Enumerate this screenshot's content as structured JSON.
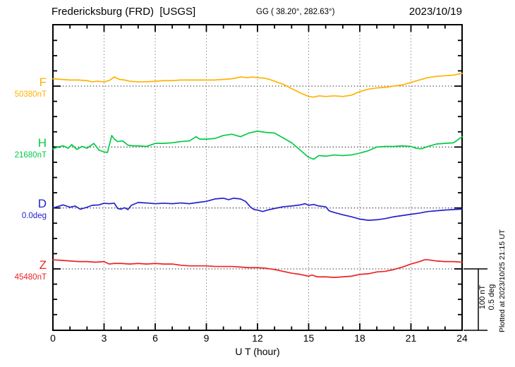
{
  "header": {
    "station_title": "Fredericksburg (FRD)  [USGS]",
    "geographic_coords": "GG ( 38.20°, 282.63°)",
    "date": "2023/10/19"
  },
  "side_note": "Plotted at 2023/10/25 21:15 UT",
  "scale_bar": {
    "nt_label": "100 nT",
    "deg_label": "0.5 deg"
  },
  "chart_data": {
    "type": "line",
    "title": "Fredericksburg (FRD) [USGS] magnetogram for 2023/10/19",
    "xlabel": "U T (hour)",
    "x_range": [
      0,
      24
    ],
    "x_major_ticks": [
      0,
      3,
      6,
      9,
      12,
      15,
      18,
      21,
      24
    ],
    "x_minor_step_hours": 1,
    "grid": "dotted vertical lines every 3 hours; dotted horizontal baseline per channel; one division of the stacked axis = 100 nT (0.5 deg for D)",
    "legend_position": "left margin channel labels",
    "channels": [
      {
        "name": "F",
        "baseline_label": "50380nT",
        "baseline_value": 50380,
        "unit": "nT",
        "units_per_division": 100,
        "color": "#FFB300",
        "series": [
          [
            0,
            50392
          ],
          [
            0.5,
            50391
          ],
          [
            1,
            50390
          ],
          [
            1.5,
            50390
          ],
          [
            2,
            50389
          ],
          [
            2.3,
            50387
          ],
          [
            2.6,
            50388
          ],
          [
            3,
            50387
          ],
          [
            3.3,
            50389
          ],
          [
            3.6,
            50395
          ],
          [
            3.9,
            50391
          ],
          [
            4.2,
            50390
          ],
          [
            4.5,
            50388
          ],
          [
            5,
            50387
          ],
          [
            5.5,
            50387
          ],
          [
            6,
            50388
          ],
          [
            6.5,
            50389
          ],
          [
            7,
            50389
          ],
          [
            7.5,
            50390
          ],
          [
            8,
            50390
          ],
          [
            8.5,
            50390
          ],
          [
            9,
            50390
          ],
          [
            9.5,
            50390
          ],
          [
            10,
            50391
          ],
          [
            10.5,
            50392
          ],
          [
            11,
            50395
          ],
          [
            11.4,
            50394
          ],
          [
            11.7,
            50395
          ],
          [
            12,
            50394
          ],
          [
            12.4,
            50393
          ],
          [
            12.7,
            50391
          ],
          [
            13,
            50388
          ],
          [
            13.5,
            50383
          ],
          [
            14,
            50376
          ],
          [
            14.5,
            50369
          ],
          [
            15,
            50363
          ],
          [
            15.3,
            50362
          ],
          [
            15.6,
            50364
          ],
          [
            16,
            50363
          ],
          [
            16.5,
            50364
          ],
          [
            17,
            50363
          ],
          [
            17.5,
            50365
          ],
          [
            18,
            50371
          ],
          [
            18.5,
            50375
          ],
          [
            19,
            50377
          ],
          [
            19.5,
            50378
          ],
          [
            20,
            50380
          ],
          [
            20.5,
            50382
          ],
          [
            21,
            50386
          ],
          [
            21.5,
            50390
          ],
          [
            22,
            50394
          ],
          [
            22.5,
            50396
          ],
          [
            23,
            50397
          ],
          [
            23.5,
            50398
          ],
          [
            24,
            50401
          ]
        ]
      },
      {
        "name": "H",
        "baseline_label": "21680nT",
        "baseline_value": 21680,
        "unit": "nT",
        "units_per_division": 100,
        "color": "#00CC44",
        "series": [
          [
            0,
            21677
          ],
          [
            0.3,
            21680
          ],
          [
            0.6,
            21682
          ],
          [
            0.9,
            21678
          ],
          [
            1.1,
            21684
          ],
          [
            1.4,
            21676
          ],
          [
            1.7,
            21681
          ],
          [
            2,
            21678
          ],
          [
            2.4,
            21686
          ],
          [
            2.7,
            21675
          ],
          [
            3,
            21672
          ],
          [
            3.2,
            21671
          ],
          [
            3.45,
            21699
          ],
          [
            3.6,
            21693
          ],
          [
            3.8,
            21689
          ],
          [
            4.1,
            21690
          ],
          [
            4.4,
            21683
          ],
          [
            4.7,
            21682
          ],
          [
            5,
            21682
          ],
          [
            5.5,
            21681
          ],
          [
            6,
            21686
          ],
          [
            6.5,
            21686
          ],
          [
            7,
            21687
          ],
          [
            7.5,
            21689
          ],
          [
            8,
            21690
          ],
          [
            8.4,
            21697
          ],
          [
            8.6,
            21693
          ],
          [
            9,
            21693
          ],
          [
            9.5,
            21694
          ],
          [
            10,
            21699
          ],
          [
            10.5,
            21701
          ],
          [
            11,
            21697
          ],
          [
            11.5,
            21703
          ],
          [
            12,
            21706
          ],
          [
            12.5,
            21704
          ],
          [
            13,
            21703
          ],
          [
            13.5,
            21695
          ],
          [
            14,
            21687
          ],
          [
            14.5,
            21675
          ],
          [
            15,
            21663
          ],
          [
            15.3,
            21660
          ],
          [
            15.6,
            21666
          ],
          [
            16,
            21665
          ],
          [
            16.5,
            21667
          ],
          [
            17,
            21666
          ],
          [
            17.5,
            21667
          ],
          [
            18,
            21670
          ],
          [
            18.5,
            21674
          ],
          [
            19,
            21680
          ],
          [
            19.5,
            21681
          ],
          [
            20,
            21681
          ],
          [
            20.5,
            21682
          ],
          [
            21,
            21681
          ],
          [
            21.3,
            21678
          ],
          [
            21.6,
            21677
          ],
          [
            22,
            21681
          ],
          [
            22.5,
            21685
          ],
          [
            23,
            21686
          ],
          [
            23.5,
            21687
          ],
          [
            24,
            21697
          ]
        ]
      },
      {
        "name": "D",
        "baseline_label": "0.0deg",
        "baseline_value": 0.0,
        "unit": "deg",
        "units_per_division": 0.5,
        "color": "#2222CC",
        "series": [
          [
            0,
            0.0
          ],
          [
            0.6,
            0.025
          ],
          [
            1,
            0.006
          ],
          [
            1.3,
            0.016
          ],
          [
            1.6,
            -0.01
          ],
          [
            2,
            0.006
          ],
          [
            2.3,
            0.022
          ],
          [
            2.7,
            0.025
          ],
          [
            3,
            0.039
          ],
          [
            3.3,
            0.035
          ],
          [
            3.6,
            0.039
          ],
          [
            3.8,
            -0.004
          ],
          [
            4,
            -0.01
          ],
          [
            4.2,
            0.002
          ],
          [
            4.4,
            -0.013
          ],
          [
            4.6,
            0.022
          ],
          [
            5,
            0.045
          ],
          [
            5.5,
            0.041
          ],
          [
            6,
            0.035
          ],
          [
            6.5,
            0.039
          ],
          [
            7,
            0.035
          ],
          [
            7.5,
            0.041
          ],
          [
            8,
            0.035
          ],
          [
            8.5,
            0.045
          ],
          [
            9,
            0.054
          ],
          [
            9.5,
            0.074
          ],
          [
            10,
            0.08
          ],
          [
            10.3,
            0.068
          ],
          [
            10.6,
            0.08
          ],
          [
            11,
            0.074
          ],
          [
            11.3,
            0.054
          ],
          [
            11.6,
            0.006
          ],
          [
            11.8,
            -0.013
          ],
          [
            12,
            -0.017
          ],
          [
            12.3,
            -0.029
          ],
          [
            12.6,
            -0.017
          ],
          [
            13,
            -0.004
          ],
          [
            13.5,
            0.01
          ],
          [
            14,
            0.016
          ],
          [
            14.5,
            0.025
          ],
          [
            14.8,
            0.035
          ],
          [
            15,
            0.022
          ],
          [
            15.3,
            0.029
          ],
          [
            15.6,
            0.016
          ],
          [
            16,
            0.01
          ],
          [
            16.2,
            -0.023
          ],
          [
            16.5,
            -0.037
          ],
          [
            17,
            -0.056
          ],
          [
            17.5,
            -0.072
          ],
          [
            18,
            -0.091
          ],
          [
            18.5,
            -0.101
          ],
          [
            19,
            -0.097
          ],
          [
            19.5,
            -0.087
          ],
          [
            20,
            -0.072
          ],
          [
            20.5,
            -0.062
          ],
          [
            21,
            -0.052
          ],
          [
            21.5,
            -0.042
          ],
          [
            22,
            -0.029
          ],
          [
            22.5,
            -0.023
          ],
          [
            23,
            -0.017
          ],
          [
            23.5,
            -0.013
          ],
          [
            24,
            -0.01
          ]
        ]
      },
      {
        "name": "Z",
        "baseline_label": "45480nT",
        "baseline_value": 45480,
        "unit": "nT",
        "units_per_division": 100,
        "color": "#EE2222",
        "series": [
          [
            0,
            45495
          ],
          [
            0.5,
            45494
          ],
          [
            1,
            45493
          ],
          [
            1.5,
            45492
          ],
          [
            2,
            45492
          ],
          [
            2.5,
            45491
          ],
          [
            3,
            45492
          ],
          [
            3.3,
            45488
          ],
          [
            3.6,
            45489
          ],
          [
            4,
            45489
          ],
          [
            4.5,
            45488
          ],
          [
            5,
            45489
          ],
          [
            5.5,
            45488
          ],
          [
            6,
            45489
          ],
          [
            6.5,
            45488
          ],
          [
            7,
            45488
          ],
          [
            7.5,
            45486
          ],
          [
            8,
            45485
          ],
          [
            8.5,
            45485
          ],
          [
            9,
            45485
          ],
          [
            9.5,
            45484
          ],
          [
            10,
            45484
          ],
          [
            10.5,
            45484
          ],
          [
            11,
            45483
          ],
          [
            11.5,
            45482
          ],
          [
            12,
            45482
          ],
          [
            12.5,
            45481
          ],
          [
            13,
            45479
          ],
          [
            13.5,
            45476
          ],
          [
            14,
            45473
          ],
          [
            14.5,
            45471
          ],
          [
            15,
            45468
          ],
          [
            15.2,
            45470
          ],
          [
            15.5,
            45467
          ],
          [
            16,
            45467
          ],
          [
            16.5,
            45466
          ],
          [
            17,
            45467
          ],
          [
            17.5,
            45468
          ],
          [
            18,
            45471
          ],
          [
            18.5,
            45472
          ],
          [
            19,
            45475
          ],
          [
            19.5,
            45476
          ],
          [
            20,
            45479
          ],
          [
            20.5,
            45483
          ],
          [
            21,
            45488
          ],
          [
            21.5,
            45492
          ],
          [
            21.8,
            45495
          ],
          [
            22,
            45495
          ],
          [
            22.5,
            45493
          ],
          [
            23,
            45492
          ],
          [
            23.5,
            45492
          ],
          [
            24,
            45491
          ]
        ]
      }
    ]
  }
}
